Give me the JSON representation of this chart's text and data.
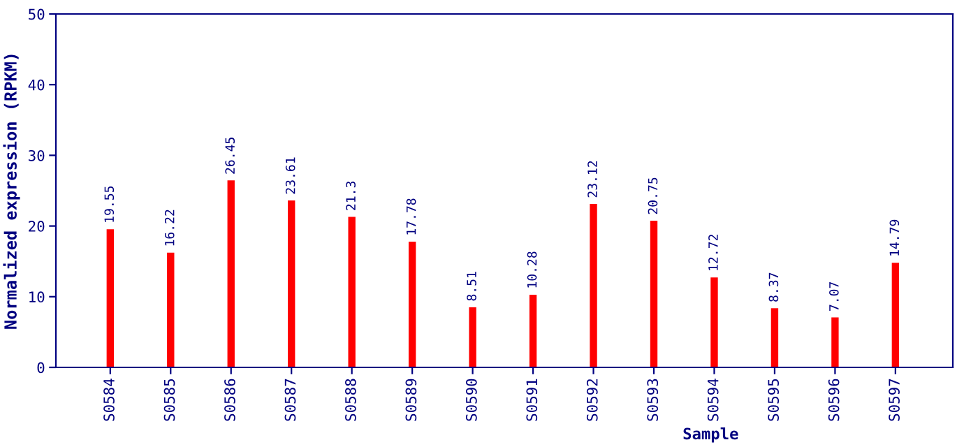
{
  "chart_data": {
    "type": "bar",
    "xlabel": "Sample",
    "ylabel": "Normalized expression (RPKM)",
    "categories": [
      "S0584",
      "S0585",
      "S0586",
      "S0587",
      "S0588",
      "S0589",
      "S0590",
      "S0591",
      "S0592",
      "S0593",
      "S0594",
      "S0595",
      "S0596",
      "S0597"
    ],
    "values": [
      19.55,
      16.22,
      26.45,
      23.61,
      21.3,
      17.78,
      8.51,
      10.28,
      23.12,
      20.75,
      12.72,
      8.37,
      7.07,
      14.79
    ],
    "color": "#ff0000",
    "ylim": [
      0,
      50
    ],
    "yticks": [
      0,
      10,
      20,
      30,
      40,
      50
    ],
    "data_labels": true,
    "grid": false,
    "legend": false
  }
}
